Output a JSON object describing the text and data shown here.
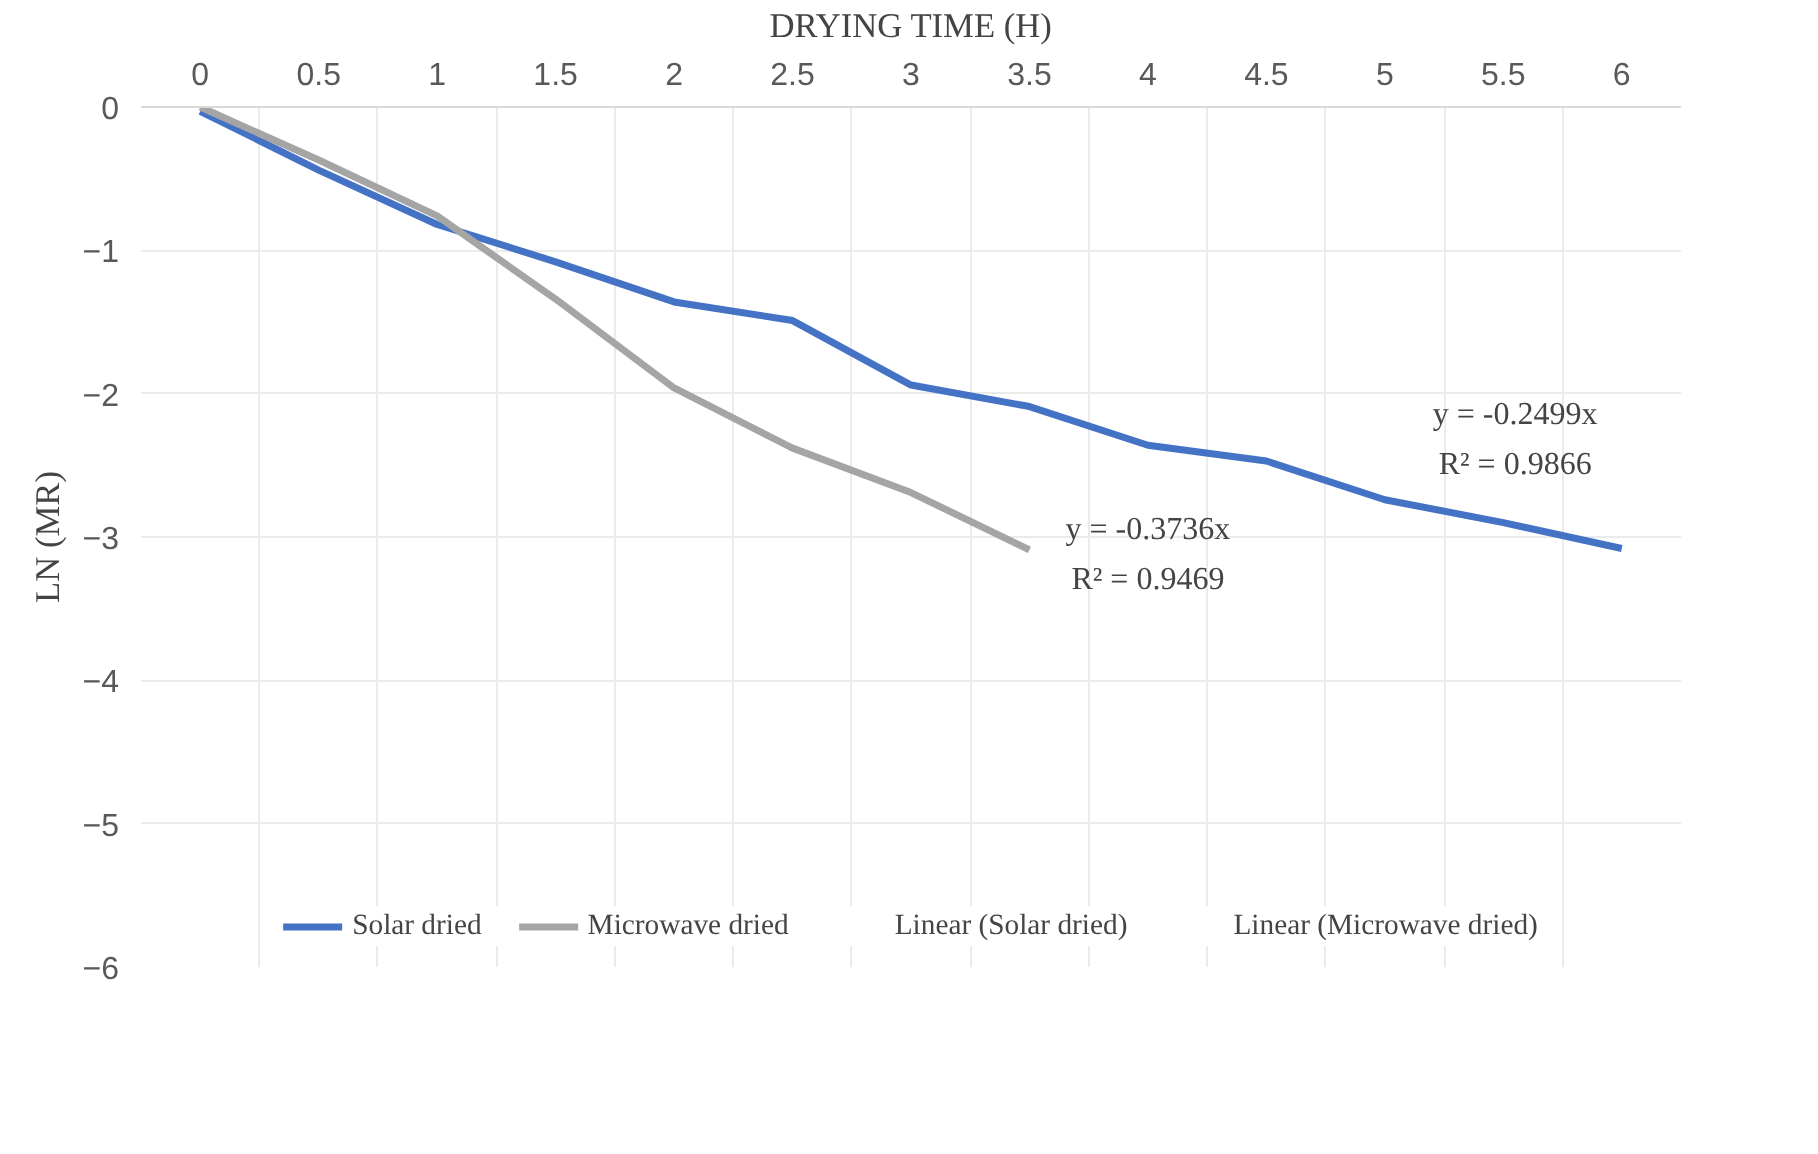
{
  "chart_data": {
    "type": "line",
    "xlabel": "DRYING TIME (H)",
    "ylabel": "LN (MR)",
    "categories": [
      "0",
      "0.5",
      "1",
      "1.5",
      "2",
      "2.5",
      "3",
      "3.5",
      "4",
      "4.5",
      "5",
      "5.5",
      "6"
    ],
    "series": [
      {
        "name": "Solar dried",
        "color": "#4472c4",
        "values": [
          -0.03,
          -0.44,
          -0.82,
          -1.08,
          -1.36,
          -1.49,
          -1.94,
          -2.09,
          -2.36,
          -2.47,
          -2.74,
          -2.9,
          -3.08
        ]
      },
      {
        "name": "Microwave dried",
        "color": "#a5a5a5",
        "values": [
          0,
          -0.37,
          -0.76,
          -1.34,
          -1.96,
          -2.38,
          -2.69,
          -3.09,
          null,
          null,
          null,
          null,
          null
        ]
      }
    ],
    "ylim": [
      -6,
      0
    ],
    "yticks": [
      -6,
      -5,
      -4,
      -3,
      -2,
      -1,
      0
    ],
    "grid": true,
    "legend": "bottom",
    "annotations": [
      "y = -0.3736x",
      "R² = 0.9469",
      "y = -0.2499x",
      "R² = 0.9866",
      "Linear (Solar dried)",
      "Linear (Microwave dried)"
    ]
  }
}
